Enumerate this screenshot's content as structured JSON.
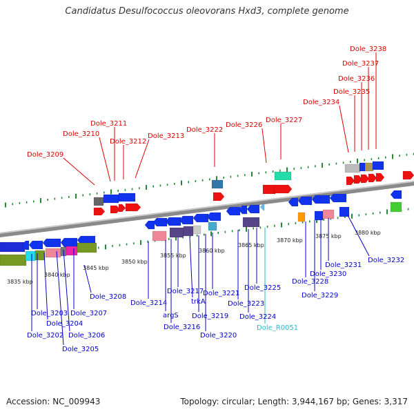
{
  "title": "Candidatus Desulfococcus oleovorans Hxd3, complete genome",
  "footer": {
    "accession": "Accession: NC_009943",
    "stats": "Topology: circular; Length: 3,944,167 bp; Genes: 3,317"
  },
  "colors": {
    "forward_label": "#dd0000",
    "reverse_label": "#0000cc",
    "rna_label": "#22bbcc",
    "tick": "#228833",
    "backbone": "#888888"
  },
  "ruler_kbp": [
    "3835 kbp",
    "3840 kbp",
    "3845 kbp",
    "3850 kbp",
    "3855 kbp",
    "3860 kbp",
    "3865 kbp",
    "3870 kbp",
    "3875 kbp",
    "3880 kbp"
  ],
  "genes": {
    "forward": [
      "Dole_3209",
      "Dole_3210",
      "Dole_3211",
      "Dole_3212",
      "Dole_3213",
      "Dole_3222",
      "Dole_3226",
      "Dole_3227",
      "Dole_3234",
      "Dole_3235",
      "Dole_3236",
      "Dole_3237",
      "Dole_3238"
    ],
    "reverse": [
      "Dole_3202",
      "Dole_3203",
      "Dole_3204",
      "Dole_3205",
      "Dole_3206",
      "Dole_3207",
      "Dole_3208",
      "Dole_3214",
      "argS",
      "Dole_3216",
      "Dole_3217",
      "trkA",
      "Dole_3219",
      "Dole_3220",
      "Dole_3221",
      "Dole_3223",
      "Dole_3224",
      "Dole_3225",
      "Dole_3228",
      "Dole_3229",
      "Dole_3230",
      "Dole_3231",
      "Dole_3232"
    ],
    "rna": [
      "Dole_R0051"
    ]
  }
}
